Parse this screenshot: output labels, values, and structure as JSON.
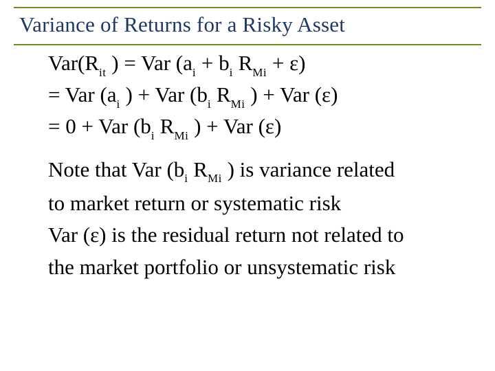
{
  "slide": {
    "title": "Variance of Returns for a Risky Asset",
    "title_fontsize": 31,
    "title_color": "#1f3864",
    "rule_color": "#6b8e23",
    "background_color": "#ffffff",
    "math": {
      "fontsize": 31,
      "color": "#000000",
      "line1_pre": "Var(R",
      "line1_sub1": "it",
      "line1_mid": " ) = Var (a",
      "line1_sub2": "i",
      "line1_mid2": " + b",
      "line1_sub3": "i",
      "line1_mid3": " R",
      "line1_sub4": "Mi",
      "line1_end": " + ε)",
      "line2_pre": "= Var (a",
      "line2_sub1": "i",
      "line2_mid": " ) + Var (b",
      "line2_sub2": "i",
      "line2_mid2": " R",
      "line2_sub3": "Mi",
      "line2_end": " ) + Var (ε)",
      "line3_pre": "= 0 + Var (b",
      "line3_sub1": "i",
      "line3_mid": " R",
      "line3_sub2": "Mi",
      "line3_end": " ) + Var (ε)"
    },
    "notes": {
      "fontsize": 31,
      "color": "#000000",
      "n1a": "Note that Var (b",
      "n1_sub1": "i",
      "n1b": " R",
      "n1_sub2": "Mi",
      "n1c": " ) is variance related",
      "n2": "to market return or systematic risk",
      "n3": "Var (ε) is the residual return not related to",
      "n4": "the market portfolio or unsystematic risk"
    }
  }
}
